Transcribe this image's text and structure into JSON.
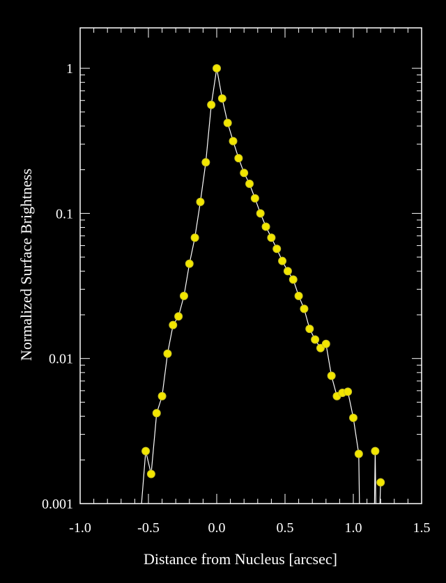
{
  "chart_data": {
    "type": "scatter",
    "title": "",
    "xlabel": "Distance from Nucleus [arcsec]",
    "ylabel": "Normalized Surface Brightness",
    "xlim": [
      -1.0,
      1.5
    ],
    "ylim": [
      0.001,
      1.9
    ],
    "y_scale": "log",
    "grid": false,
    "x_ticks": [
      {
        "value": -1.0,
        "label": "-1.0"
      },
      {
        "value": -0.5,
        "label": "-0.5"
      },
      {
        "value": 0.0,
        "label": "0.0"
      },
      {
        "value": 0.5,
        "label": "0.5"
      },
      {
        "value": 1.0,
        "label": "1.0"
      },
      {
        "value": 1.5,
        "label": "1.5"
      }
    ],
    "y_ticks": [
      {
        "value": 0.001,
        "label": "0.001"
      },
      {
        "value": 0.01,
        "label": "0.01"
      },
      {
        "value": 0.1,
        "label": "0.1"
      },
      {
        "value": 1,
        "label": "1"
      }
    ],
    "colors": {
      "marker_fill": "#f2e600",
      "marker_stroke": "#c8c020",
      "line": "#ffffff",
      "frame": "#ffffff",
      "background": "#000000"
    },
    "series": [
      {
        "points": [
          [
            -0.52,
            0.0023
          ],
          [
            -0.48,
            0.0016
          ],
          [
            -0.44,
            0.0042
          ],
          [
            -0.4,
            0.0055
          ],
          [
            -0.36,
            0.0108
          ],
          [
            -0.32,
            0.017
          ],
          [
            -0.28,
            0.0195
          ],
          [
            -0.24,
            0.027
          ],
          [
            -0.2,
            0.045
          ],
          [
            -0.16,
            0.068
          ],
          [
            -0.12,
            0.12
          ],
          [
            -0.08,
            0.225
          ],
          [
            -0.04,
            0.56
          ],
          [
            0.0,
            1.0
          ],
          [
            0.04,
            0.62
          ],
          [
            0.08,
            0.42
          ],
          [
            0.12,
            0.315
          ],
          [
            0.16,
            0.24
          ],
          [
            0.2,
            0.19
          ],
          [
            0.24,
            0.16
          ],
          [
            0.28,
            0.127
          ],
          [
            0.32,
            0.1
          ],
          [
            0.36,
            0.081
          ],
          [
            0.4,
            0.068
          ],
          [
            0.44,
            0.057
          ],
          [
            0.48,
            0.047
          ],
          [
            0.52,
            0.04
          ],
          [
            0.56,
            0.035
          ],
          [
            0.6,
            0.027
          ],
          [
            0.64,
            0.022
          ],
          [
            0.68,
            0.016
          ],
          [
            0.72,
            0.0135
          ],
          [
            0.76,
            0.0118
          ],
          [
            0.8,
            0.0126
          ],
          [
            0.84,
            0.0076
          ],
          [
            0.88,
            0.0055
          ],
          [
            0.92,
            0.0058
          ],
          [
            0.96,
            0.0059
          ],
          [
            1.0,
            0.0039
          ],
          [
            1.04,
            0.0022
          ],
          [
            1.16,
            0.0023
          ],
          [
            1.2,
            0.0014
          ]
        ]
      }
    ]
  }
}
